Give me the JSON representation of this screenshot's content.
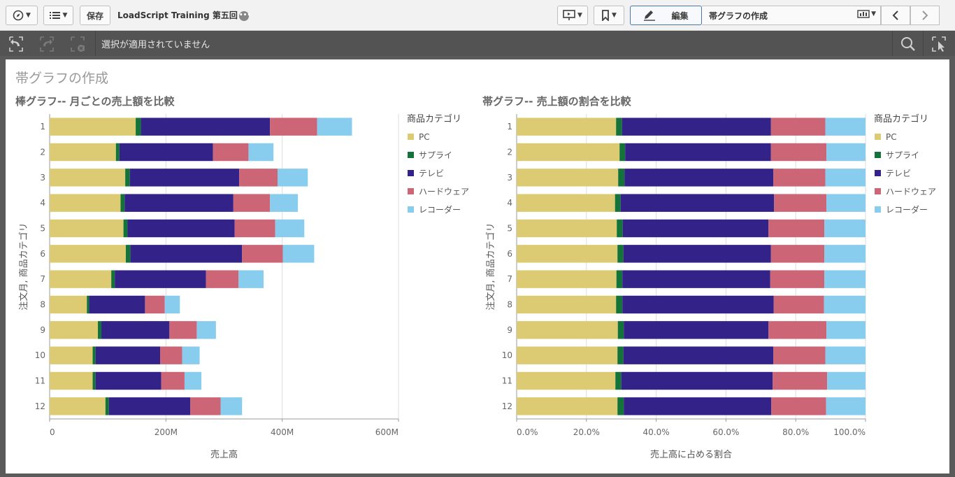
{
  "toolbar": {
    "save_label": "保存",
    "app_title": "LoadScript Training 第五回",
    "edit_label": "編集",
    "sheet_name": "帯グラフの作成"
  },
  "selections": {
    "status_text": "選択が適用されていません"
  },
  "sheet": {
    "title": "帯グラフの作成"
  },
  "chart_data": [
    {
      "type": "bar",
      "orientation": "horizontal",
      "stacked": true,
      "title": "棒グラフ-- 月ごとの売上額を比較",
      "xlabel": "売上高",
      "ylabel": "注文月, 商品カテゴリ",
      "categories": [
        "1",
        "2",
        "3",
        "4",
        "5",
        "6",
        "7",
        "8",
        "9",
        "10",
        "11",
        "12"
      ],
      "xlim": [
        0,
        600
      ],
      "xticks": [
        "0",
        "200M",
        "400M",
        "600M"
      ],
      "legend_title": "商品カテゴリ",
      "legend_position": "right",
      "series": [
        {
          "name": "PC",
          "color": "#dccb72",
          "values": [
            148,
            114,
            130,
            122,
            127,
            131,
            106,
            64,
            83,
            74,
            74,
            96
          ]
        },
        {
          "name": "サプライ",
          "color": "#147339",
          "values": [
            9,
            6,
            8,
            7,
            7,
            8,
            6,
            4,
            6,
            5,
            5,
            6
          ]
        },
        {
          "name": "テレビ",
          "color": "#332288",
          "values": [
            222,
            161,
            188,
            187,
            184,
            192,
            157,
            96,
            117,
            111,
            113,
            140
          ]
        },
        {
          "name": "ハードウェア",
          "color": "#cc6677",
          "values": [
            81,
            61,
            66,
            63,
            70,
            70,
            56,
            34,
            47,
            38,
            40,
            52
          ]
        },
        {
          "name": "レコーダー",
          "color": "#88ccee",
          "values": [
            60,
            43,
            52,
            48,
            50,
            54,
            43,
            26,
            33,
            30,
            29,
            37
          ]
        }
      ]
    },
    {
      "type": "bar",
      "orientation": "horizontal",
      "stacked": true,
      "percent": true,
      "title": "帯グラフ-- 売上額の割合を比較",
      "xlabel": "売上高に占める割合",
      "ylabel": "注文月, 商品カテゴリ",
      "categories": [
        "1",
        "2",
        "3",
        "4",
        "5",
        "6",
        "7",
        "8",
        "9",
        "10",
        "11",
        "12"
      ],
      "xlim": [
        0,
        100
      ],
      "xticks": [
        "0.0%",
        "20.0%",
        "40.0%",
        "60.0%",
        "80.0%",
        "100.0%"
      ],
      "legend_title": "商品カテゴリ",
      "legend_position": "right",
      "series": [
        {
          "name": "PC",
          "color": "#dccb72",
          "values": [
            28.5,
            29.5,
            29.1,
            28.2,
            28.7,
            28.9,
            28.6,
            28.5,
            29.0,
            28.9,
            28.3,
            28.9
          ]
        },
        {
          "name": "サプライ",
          "color": "#147339",
          "values": [
            1.7,
            1.6,
            1.8,
            1.6,
            1.7,
            1.7,
            1.7,
            1.8,
            1.7,
            1.7,
            1.7,
            1.8
          ]
        },
        {
          "name": "テレビ",
          "color": "#332288",
          "values": [
            42.7,
            41.8,
            42.7,
            44.0,
            41.8,
            42.3,
            42.4,
            43.4,
            41.5,
            43.0,
            43.4,
            42.3
          ]
        },
        {
          "name": "ハードウェア",
          "color": "#cc6677",
          "values": [
            15.6,
            15.9,
            14.9,
            15.0,
            16.0,
            15.3,
            15.5,
            14.4,
            16.6,
            14.9,
            15.6,
            15.7
          ]
        },
        {
          "name": "レコーダー",
          "color": "#88ccee",
          "values": [
            11.5,
            11.2,
            11.5,
            11.2,
            11.8,
            11.8,
            11.8,
            11.9,
            11.2,
            11.5,
            11.0,
            11.3
          ]
        }
      ]
    }
  ]
}
